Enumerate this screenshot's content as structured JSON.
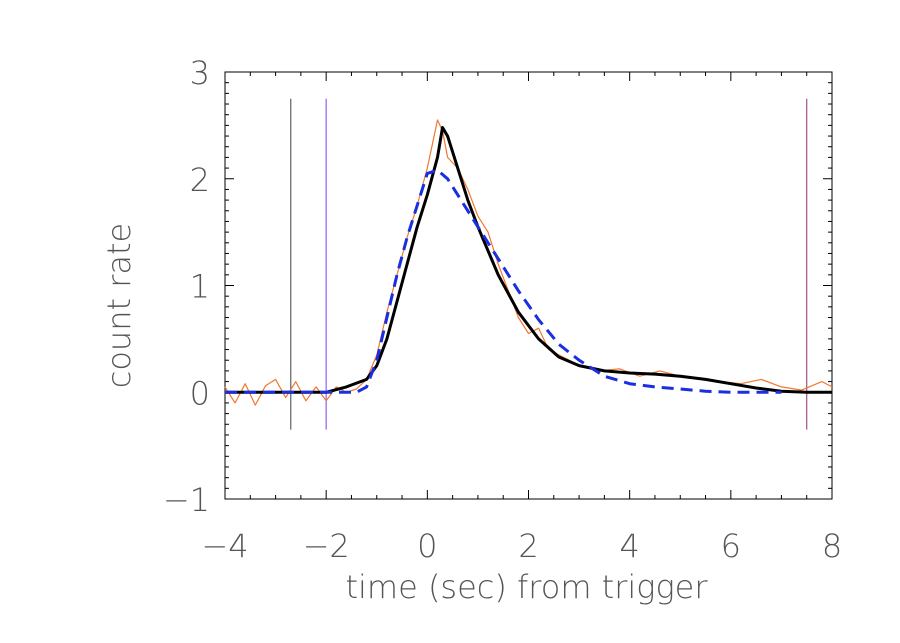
{
  "chart_data": {
    "type": "line",
    "title": "",
    "xlabel": "time (sec) from trigger",
    "ylabel": "count rate",
    "xlim": [
      -4,
      8
    ],
    "ylim": [
      -1.0,
      3.0
    ],
    "x_ticks": [
      "−4",
      "−2",
      "0",
      "2",
      "4",
      "6",
      "8"
    ],
    "y_ticks": [
      "−1",
      "0",
      "1",
      "2",
      "3"
    ],
    "grid": false,
    "legend": "none",
    "series": [
      {
        "style": "noisy-data",
        "color": "#f07830",
        "x": [
          -4.0,
          -3.8,
          -3.6,
          -3.4,
          -3.2,
          -3.0,
          -2.8,
          -2.6,
          -2.4,
          -2.2,
          -2.0,
          -1.8,
          -1.6,
          -1.4,
          -1.2,
          -1.0,
          -0.8,
          -0.6,
          -0.4,
          -0.2,
          0.0,
          0.2,
          0.3,
          0.4,
          0.6,
          0.8,
          1.0,
          1.2,
          1.4,
          1.6,
          1.8,
          2.0,
          2.2,
          2.4,
          2.6,
          2.8,
          3.0,
          3.4,
          3.8,
          4.2,
          4.6,
          5.0,
          5.4,
          5.8,
          6.2,
          6.6,
          7.0,
          7.4,
          7.8,
          8.0
        ],
        "y": [
          0.05,
          -0.1,
          0.08,
          -0.12,
          0.06,
          0.12,
          -0.05,
          0.1,
          -0.08,
          0.05,
          -0.08,
          0.05,
          0.0,
          0.03,
          0.12,
          0.35,
          0.75,
          1.1,
          1.45,
          1.75,
          2.1,
          2.55,
          2.45,
          2.2,
          2.1,
          1.9,
          1.65,
          1.5,
          1.2,
          0.95,
          0.7,
          0.55,
          0.6,
          0.4,
          0.35,
          0.3,
          0.25,
          0.2,
          0.22,
          0.15,
          0.2,
          0.15,
          0.12,
          0.1,
          0.08,
          0.12,
          0.05,
          0.02,
          0.1,
          0.05
        ]
      },
      {
        "style": "solid-model",
        "color": "#000000",
        "x": [
          -4.0,
          -3.0,
          -2.0,
          -1.6,
          -1.2,
          -1.0,
          -0.8,
          -0.6,
          -0.4,
          -0.2,
          0.0,
          0.2,
          0.3,
          0.4,
          0.6,
          0.8,
          1.0,
          1.4,
          1.8,
          2.2,
          2.6,
          3.0,
          3.5,
          4.0,
          4.5,
          5.0,
          5.5,
          6.0,
          6.5,
          7.0,
          7.5,
          8.0
        ],
        "y": [
          0.0,
          0.0,
          0.0,
          0.05,
          0.12,
          0.25,
          0.5,
          0.85,
          1.2,
          1.55,
          1.85,
          2.2,
          2.48,
          2.4,
          2.1,
          1.8,
          1.55,
          1.1,
          0.75,
          0.5,
          0.33,
          0.25,
          0.2,
          0.18,
          0.17,
          0.15,
          0.12,
          0.08,
          0.04,
          0.01,
          0.0,
          0.0
        ]
      },
      {
        "style": "dashed-model",
        "color": "#1a2fe0",
        "x": [
          -4.0,
          -1.4,
          -1.2,
          -1.0,
          -0.8,
          -0.6,
          -0.4,
          -0.2,
          0.0,
          0.2,
          0.4,
          0.6,
          0.8,
          1.0,
          1.4,
          1.8,
          2.2,
          2.6,
          3.0,
          3.5,
          4.0,
          4.5,
          5.0,
          5.5,
          6.0,
          6.5,
          7.0
        ],
        "y": [
          0.0,
          0.0,
          0.05,
          0.3,
          0.7,
          1.1,
          1.45,
          1.75,
          2.05,
          2.08,
          2.0,
          1.85,
          1.7,
          1.55,
          1.25,
          0.95,
          0.68,
          0.45,
          0.3,
          0.15,
          0.08,
          0.05,
          0.03,
          0.01,
          0.0,
          0.0,
          0.0
        ]
      }
    ],
    "vertical_lines": [
      {
        "x": -2.7,
        "color": "#606060",
        "y_range": [
          -0.35,
          2.75
        ]
      },
      {
        "x": -2.0,
        "color": "#9060ee",
        "y_range": [
          -0.35,
          2.75
        ]
      },
      {
        "x": 7.5,
        "color": "#a05090",
        "y_range": [
          -0.35,
          2.75
        ]
      }
    ]
  }
}
